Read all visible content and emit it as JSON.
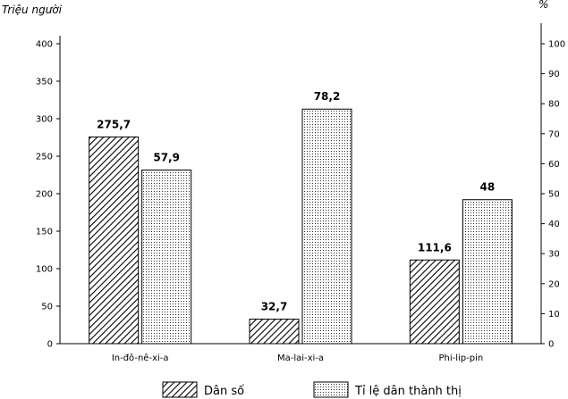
{
  "chart_data": {
    "type": "bar",
    "categories": [
      "In-đô-nê-xi-a",
      "Ma-lai-xi-a",
      "Phi-lip-pin"
    ],
    "series": [
      {
        "name": "Dân số",
        "values": [
          275.7,
          32.7,
          111.6
        ],
        "axis": "left",
        "labels": [
          "275,7",
          "32,7",
          "111,6"
        ],
        "pattern": "diagonal-hatch"
      },
      {
        "name": "Tỉ lệ dân thành thị",
        "values": [
          57.9,
          78.2,
          48
        ],
        "axis": "right",
        "labels": [
          "57,9",
          "78,2",
          "48"
        ],
        "pattern": "dots"
      }
    ],
    "ylabel": "Triệu người",
    "ylabel_right": "%",
    "ylim": [
      0,
      400
    ],
    "ylim_right": [
      0,
      100
    ],
    "yticks": [
      0,
      50,
      100,
      150,
      200,
      250,
      300,
      350,
      400
    ],
    "yticks_right": [
      0,
      10,
      20,
      30,
      40,
      50,
      60,
      70,
      80,
      90,
      100
    ],
    "grid": false,
    "legend_position": "bottom"
  }
}
